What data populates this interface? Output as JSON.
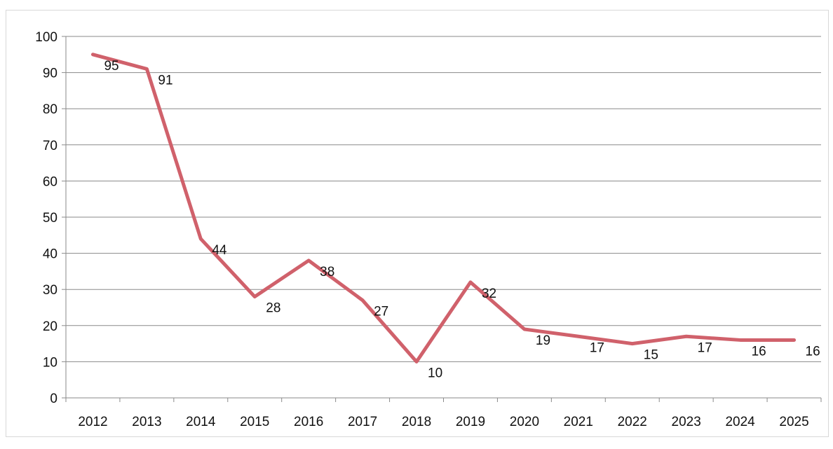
{
  "chart_data": {
    "type": "line",
    "title": "",
    "xlabel": "",
    "ylabel": "",
    "categories": [
      "2012",
      "2013",
      "2014",
      "2015",
      "2016",
      "2017",
      "2018",
      "2019",
      "2020",
      "2021",
      "2022",
      "2023",
      "2024",
      "2025"
    ],
    "series": [
      {
        "values": [
          95,
          91,
          44,
          28,
          38,
          27,
          10,
          32,
          19,
          17,
          15,
          17,
          16,
          16
        ],
        "color": "#d0616b"
      }
    ],
    "data_labels": [
      "95",
      "91",
      "44",
      "28",
      "38",
      "27",
      "10",
      "32",
      "19",
      "17",
      "15",
      "17",
      "16",
      "16"
    ],
    "ylim": [
      0,
      100
    ],
    "yticks": [
      "0",
      "10",
      "20",
      "30",
      "40",
      "50",
      "60",
      "70",
      "80",
      "90",
      "100"
    ],
    "grid": true,
    "legend": "none",
    "colors": {
      "line": "#d0616b",
      "grid": "#8a8a8a",
      "axis": "#8a8a8a",
      "text": "#111111"
    }
  }
}
